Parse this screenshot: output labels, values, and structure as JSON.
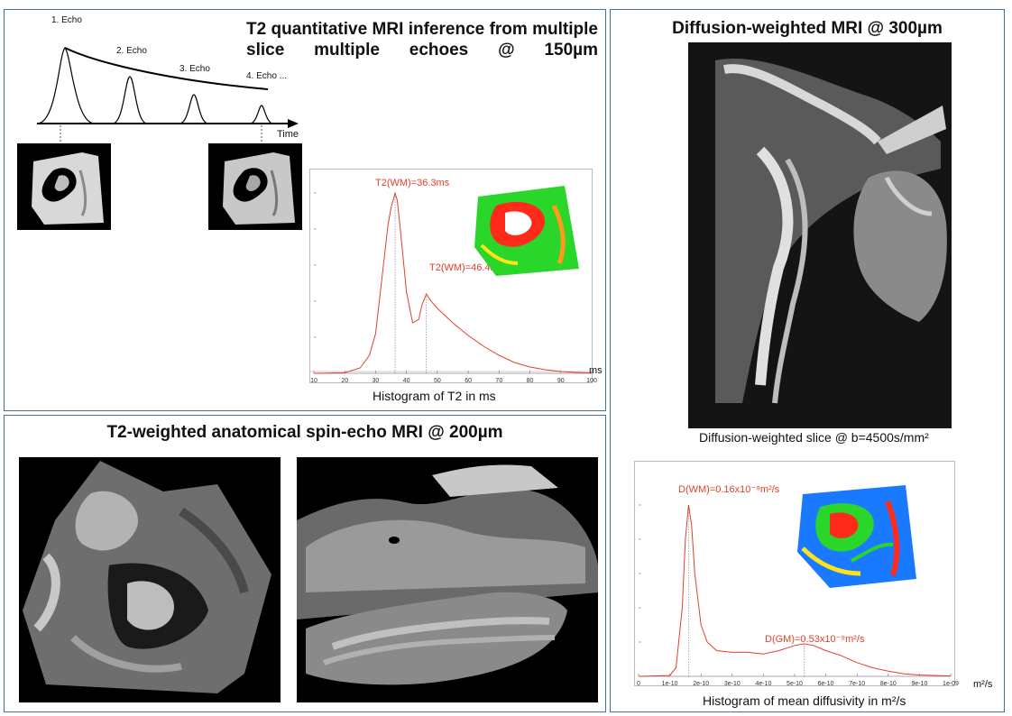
{
  "panel_t2_quant": {
    "title": "T2 quantitative MRI inference from multiple slice multiple echoes @ 150µm",
    "echo_labels": [
      "1. Echo",
      "2. Echo",
      "3. Echo",
      "4. Echo ..."
    ],
    "time_label": "Time",
    "histogram_caption": "Histogram of T2 in ms",
    "unit_label": "ms",
    "peak_labels": [
      "T2(WM)=36.3ms",
      "T2(WM)=46.4ms"
    ]
  },
  "panel_anatomical": {
    "title": "T2-weighted anatomical spin-echo MRI @ 200µm"
  },
  "panel_diffusion": {
    "title": "Diffusion-weighted MRI @ 300µm",
    "slice_caption": "Diffusion-weighted slice @ b=4500s/mm²",
    "histogram_caption": "Histogram of mean diffusivity in m²/s",
    "unit_label": "m²/s",
    "peak_labels": [
      "D(WM)=0.16x10⁻⁹m²/s",
      "D(GM)=0.53x10⁻⁹m²/s"
    ]
  },
  "chart_data": [
    {
      "type": "line",
      "title": "Histogram of T2 in ms",
      "xlabel": "ms",
      "xlim": [
        10,
        100
      ],
      "x_ticks": [
        "10",
        "20",
        "30",
        "40",
        "50",
        "60",
        "70",
        "80",
        "90",
        "100"
      ],
      "series": [
        {
          "x": [
            10,
            20,
            25,
            28,
            30,
            32,
            34,
            35,
            36,
            36.3,
            37,
            38,
            40,
            42,
            44,
            45,
            46,
            46.4,
            48,
            50,
            55,
            60,
            65,
            70,
            75,
            80,
            85,
            90,
            95,
            100
          ],
          "values": [
            0,
            0.3,
            3,
            10,
            22,
            52,
            82,
            92,
            98,
            100,
            96,
            80,
            45,
            28,
            30,
            38,
            42,
            44,
            40,
            36,
            28,
            21,
            15,
            10,
            6,
            3.5,
            2,
            1,
            0.5,
            0.2
          ]
        }
      ],
      "peaks": [
        36.3,
        46.4
      ],
      "color": "#e0402a"
    },
    {
      "type": "line",
      "title": "Histogram of mean diffusivity in m²/s",
      "xlabel": "m²/s",
      "xlim": [
        0,
        1e-09
      ],
      "x_ticks": [
        "0",
        "1e-10",
        "2e-10",
        "3e-10",
        "4e-10",
        "5e-10",
        "6e-10",
        "7e-10",
        "8e-10",
        "9e-10",
        "1e-09"
      ],
      "series": [
        {
          "x": [
            0,
            0.1,
            0.12,
            0.14,
            0.15,
            0.16,
            0.17,
            0.18,
            0.2,
            0.22,
            0.25,
            0.3,
            0.35,
            0.4,
            0.45,
            0.5,
            0.53,
            0.56,
            0.6,
            0.65,
            0.7,
            0.75,
            0.8,
            0.85,
            0.9,
            1.0
          ],
          "values": [
            0,
            0.5,
            5,
            40,
            80,
            100,
            88,
            60,
            30,
            20,
            15,
            14,
            14,
            13,
            15,
            18,
            19,
            18,
            15,
            12,
            8,
            5,
            3,
            1.5,
            0.8,
            0.2
          ]
        }
      ],
      "peaks": [
        0.16,
        0.53
      ],
      "color": "#e0402a"
    }
  ],
  "colors": {
    "border": "#4a6f93",
    "curve": "#e0402a"
  }
}
